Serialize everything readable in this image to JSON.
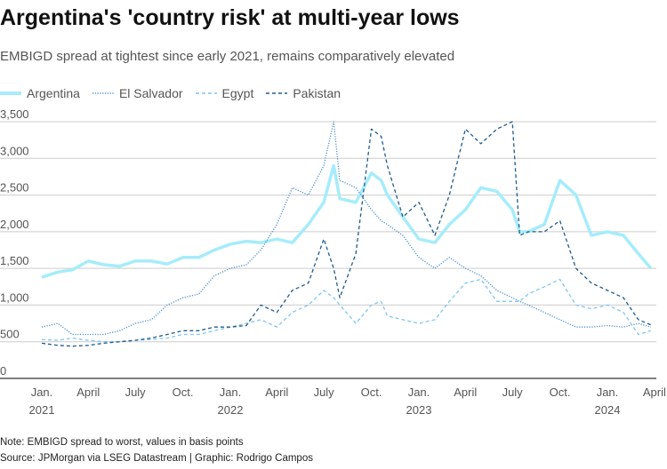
{
  "title": "Argentina's 'country risk' at multi-year lows",
  "subtitle": "EMBIGD spread at tightest since early 2021, remains comparatively elevated",
  "note": "Note: EMBIGD spread to worst, values in basis points",
  "source": "Source: JPMorgan via LSEG Datastream | Graphic: Rodrigo Campos",
  "chart_data": {
    "type": "line",
    "ylim": [
      0,
      3500
    ],
    "yticks": [
      0,
      500,
      1000,
      1500,
      2000,
      2500,
      3000,
      3500
    ],
    "ytick_labels": [
      "0",
      "500",
      "1,000",
      "1,500",
      "2,000",
      "2,500",
      "3,000",
      "3,500"
    ],
    "xticks": [
      {
        "date": "2021-01-01",
        "label": "Jan.",
        "sub": "2021"
      },
      {
        "date": "2021-04-01",
        "label": "April",
        "sub": ""
      },
      {
        "date": "2021-07-01",
        "label": "July",
        "sub": ""
      },
      {
        "date": "2021-10-01",
        "label": "Oct.",
        "sub": ""
      },
      {
        "date": "2022-01-01",
        "label": "Jan.",
        "sub": "2022"
      },
      {
        "date": "2022-04-01",
        "label": "April",
        "sub": ""
      },
      {
        "date": "2022-07-01",
        "label": "July",
        "sub": ""
      },
      {
        "date": "2022-10-01",
        "label": "Oct.",
        "sub": ""
      },
      {
        "date": "2023-01-01",
        "label": "Jan.",
        "sub": "2023"
      },
      {
        "date": "2023-04-01",
        "label": "April",
        "sub": ""
      },
      {
        "date": "2023-07-01",
        "label": "July",
        "sub": ""
      },
      {
        "date": "2023-10-01",
        "label": "Oct.",
        "sub": ""
      },
      {
        "date": "2024-01-01",
        "label": "Jan.",
        "sub": "2024"
      },
      {
        "date": "2024-04-01",
        "label": "April",
        "sub": ""
      }
    ],
    "x": [
      "2021-01-01",
      "2021-02-01",
      "2021-03-01",
      "2021-04-01",
      "2021-05-01",
      "2021-06-01",
      "2021-07-01",
      "2021-08-01",
      "2021-09-01",
      "2021-10-01",
      "2021-11-01",
      "2021-12-01",
      "2022-01-01",
      "2022-02-01",
      "2022-03-01",
      "2022-04-01",
      "2022-05-01",
      "2022-06-01",
      "2022-07-01",
      "2022-07-20",
      "2022-08-01",
      "2022-09-01",
      "2022-10-01",
      "2022-10-20",
      "2022-11-01",
      "2022-12-01",
      "2023-01-01",
      "2023-02-01",
      "2023-03-01",
      "2023-04-01",
      "2023-05-01",
      "2023-06-01",
      "2023-07-01",
      "2023-07-15",
      "2023-08-01",
      "2023-09-01",
      "2023-10-01",
      "2023-11-01",
      "2023-12-01",
      "2024-01-01",
      "2024-02-01",
      "2024-03-01",
      "2024-03-25"
    ],
    "series": [
      {
        "name": "Argentina",
        "color": "#a6ecfb",
        "style": "solid",
        "values": [
          1380,
          1450,
          1480,
          1600,
          1550,
          1530,
          1600,
          1600,
          1560,
          1650,
          1650,
          1750,
          1830,
          1870,
          1850,
          1900,
          1850,
          2100,
          2400,
          2900,
          2450,
          2400,
          2800,
          2700,
          2500,
          2200,
          1900,
          1850,
          2100,
          2300,
          2600,
          2550,
          2300,
          2000,
          2000,
          2100,
          2700,
          2500,
          1950,
          2000,
          1950,
          1700,
          1500
        ]
      },
      {
        "name": "El Salvador",
        "color": "#4a8fcb",
        "style": "dotted",
        "values": [
          700,
          750,
          600,
          600,
          600,
          650,
          750,
          800,
          1000,
          1100,
          1150,
          1400,
          1500,
          1550,
          1750,
          2100,
          2600,
          2500,
          2900,
          3500,
          2700,
          2600,
          2300,
          2150,
          2100,
          1950,
          1650,
          1500,
          1650,
          1500,
          1400,
          1200,
          1100,
          1050,
          1000,
          900,
          800,
          700,
          700,
          720,
          700,
          750,
          700
        ]
      },
      {
        "name": "Egypt",
        "color": "#80c6f0",
        "style": "dashed",
        "values": [
          530,
          520,
          550,
          520,
          500,
          500,
          520,
          530,
          550,
          600,
          600,
          650,
          700,
          750,
          800,
          700,
          900,
          1000,
          1200,
          1100,
          1000,
          750,
          1000,
          1050,
          850,
          800,
          750,
          800,
          1050,
          1300,
          1350,
          1050,
          1050,
          1050,
          1150,
          1250,
          1350,
          1000,
          950,
          1000,
          900,
          600,
          650
        ]
      },
      {
        "name": "Pakistan",
        "color": "#1f5b8c",
        "style": "dashed",
        "values": [
          480,
          450,
          440,
          450,
          480,
          500,
          520,
          550,
          600,
          650,
          650,
          700,
          700,
          720,
          1000,
          900,
          1200,
          1300,
          1900,
          1500,
          1100,
          1700,
          3400,
          3300,
          2900,
          2200,
          2400,
          1950,
          2500,
          3400,
          3200,
          3400,
          3500,
          1950,
          2000,
          2000,
          2150,
          1500,
          1300,
          1200,
          1100,
          800,
          730
        ]
      }
    ]
  }
}
